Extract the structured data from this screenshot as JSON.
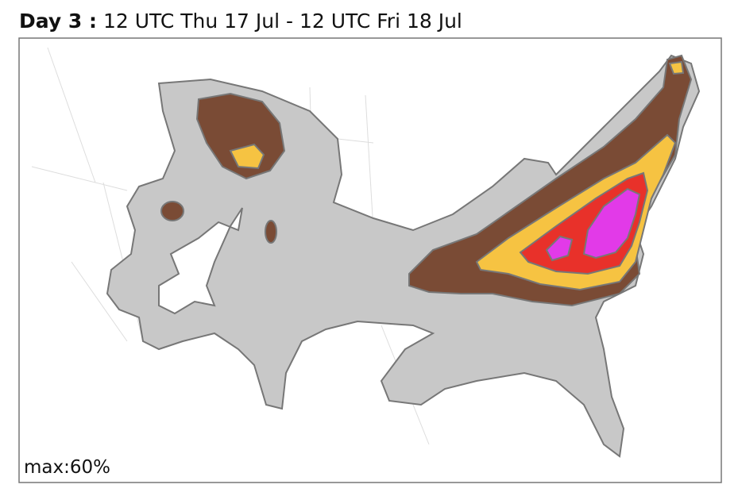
{
  "header": {
    "day": "Day 3 :",
    "period": "12 UTC Thu 17 Jul - 12 UTC Fri 18 Jul"
  },
  "map": {
    "max_label": "max:60%"
  }
}
